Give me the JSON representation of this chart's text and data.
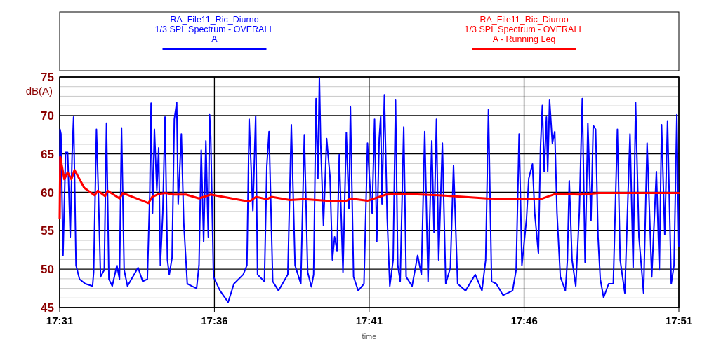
{
  "chart_data": {
    "type": "line",
    "xlabel": "time",
    "ylabel": "dB(A)",
    "xlim": [
      17.5167,
      17.85
    ],
    "xticks": [
      {
        "value": 17.5167,
        "label": "17:31"
      },
      {
        "value": 17.6,
        "label": "17:36"
      },
      {
        "value": 17.6833,
        "label": "17:41"
      },
      {
        "value": 17.7667,
        "label": "17:46"
      },
      {
        "value": 17.85,
        "label": "17:51"
      }
    ],
    "ylim": [
      45,
      75
    ],
    "yticks": [
      45,
      {
        "value": 46.25,
        "label": null
      },
      {
        "value": 47.5,
        "label": null
      },
      {
        "value": 48.75,
        "label": null
      },
      50,
      {
        "value": 51.25,
        "label": null
      },
      {
        "value": 52.5,
        "label": null
      },
      {
        "value": 53.75,
        "label": null
      },
      55,
      {
        "value": 56.25,
        "label": null
      },
      {
        "value": 57.5,
        "label": null
      },
      {
        "value": 58.75,
        "label": null
      },
      60,
      {
        "value": 61.25,
        "label": null
      },
      {
        "value": 62.5,
        "label": null
      },
      {
        "value": 63.75,
        "label": null
      },
      65,
      {
        "value": 66.25,
        "label": null
      },
      {
        "value": 67.5,
        "label": null
      },
      {
        "value": 68.75,
        "label": null
      },
      70,
      {
        "value": 71.25,
        "label": null
      },
      {
        "value": 72.5,
        "label": null
      },
      {
        "value": 73.75,
        "label": null
      },
      75
    ],
    "grid": true,
    "legend": "top",
    "marker": "none",
    "line_style": "solid",
    "series": [
      {
        "name": "RA_File11_Ric_Diurno\n1/3 SPL Spectrum - OVERALL\nA",
        "color": "#0000ff",
        "x": [
          17.5167,
          17.5169,
          17.5174,
          17.5185,
          17.5199,
          17.521,
          17.5224,
          17.5234,
          17.5242,
          17.5255,
          17.5274,
          17.5305,
          17.5344,
          17.535,
          17.5365,
          17.5375,
          17.5387,
          17.5407,
          17.5419,
          17.5432,
          17.545,
          17.5475,
          17.5489,
          17.55,
          17.5514,
          17.5532,
          17.5589,
          17.5614,
          17.5639,
          17.5652,
          17.5659,
          17.5667,
          17.5677,
          17.569,
          17.57,
          17.5709,
          17.5722,
          17.5734,
          17.5747,
          17.5757,
          17.5772,
          17.5784,
          17.5797,
          17.5805,
          17.5822,
          17.5835,
          17.5854,
          17.5879,
          17.5904,
          17.5917,
          17.5929,
          17.5942,
          17.5954,
          17.5967,
          17.5974,
          17.598,
          17.5995,
          17.603,
          17.6074,
          17.6105,
          17.6155,
          17.6175,
          17.6187,
          17.6207,
          17.6222,
          17.6232,
          17.6269,
          17.6282,
          17.6294,
          17.6314,
          17.6345,
          17.6395,
          17.6414,
          17.6434,
          17.6465,
          17.6484,
          17.6502,
          17.6522,
          17.6534,
          17.6547,
          17.6557,
          17.6565,
          17.6572,
          17.6587,
          17.6604,
          17.6622,
          17.6635,
          17.6647,
          17.666,
          17.6672,
          17.6692,
          17.671,
          17.6724,
          17.6732,
          17.6749,
          17.6774,
          17.6805,
          17.6824,
          17.6837,
          17.6849,
          17.6862,
          17.6874,
          17.6887,
          17.6895,
          17.6902,
          17.6915,
          17.693,
          17.6944,
          17.6962,
          17.6975,
          17.6987,
          17.7,
          17.7019,
          17.7032,
          17.7064,
          17.7094,
          17.7114,
          17.7132,
          17.715,
          17.717,
          17.7182,
          17.7195,
          17.7207,
          17.7227,
          17.7245,
          17.727,
          17.7287,
          17.7309,
          17.7352,
          17.7404,
          17.744,
          17.746,
          17.7475,
          17.7492,
          17.7517,
          17.7554,
          17.7605,
          17.7624,
          17.764,
          17.7655,
          17.768,
          17.7692,
          17.7712,
          17.7724,
          17.7744,
          17.7755,
          17.7765,
          17.7775,
          17.7787,
          17.7794,
          17.7804,
          17.7819,
          17.7832,
          17.7844,
          17.7862,
          17.7889,
          17.79,
          17.791,
          17.7925,
          17.7945,
          17.7964,
          17.798,
          17.7995,
          17.801,
          17.8027,
          17.8039,
          17.8052,
          17.8065,
          17.8077,
          17.8095,
          17.8122,
          17.8147,
          17.8169,
          17.8184,
          17.8209,
          17.8237,
          17.8254,
          17.8267,
          17.8285,
          17.831,
          17.8329,
          17.8354,
          17.8379,
          17.8395,
          17.8407,
          17.8424,
          17.8439,
          17.8459,
          17.8474,
          17.8489,
          17.85
        ],
        "values": [
          56.6,
          68.2,
          67.6,
          51.8,
          65.2,
          65.2,
          54.2,
          64.9,
          69.8,
          50.5,
          48.7,
          48.1,
          47.8,
          49.6,
          68.2,
          60.3,
          49.0,
          49.9,
          69.0,
          48.7,
          47.8,
          50.5,
          48.7,
          68.4,
          49.9,
          47.8,
          50.2,
          48.4,
          48.7,
          59.7,
          71.6,
          57.3,
          68.2,
          60.3,
          65.8,
          50.5,
          57.3,
          69.8,
          51.2,
          49.3,
          51.5,
          69.5,
          71.7,
          58.5,
          67.6,
          56.0,
          48.1,
          47.8,
          47.5,
          50.5,
          65.5,
          53.6,
          66.7,
          54.2,
          70.1,
          67.3,
          49.0,
          47.2,
          45.7,
          48.1,
          49.3,
          50.5,
          69.5,
          57.6,
          69.9,
          49.3,
          48.4,
          63.4,
          67.9,
          48.4,
          47.2,
          49.3,
          68.8,
          50.5,
          48.1,
          67.5,
          49.6,
          47.7,
          49.3,
          72.2,
          61.8,
          74.9,
          66.4,
          55.7,
          67.0,
          62.1,
          51.2,
          54.2,
          52.4,
          64.9,
          49.6,
          67.8,
          57.9,
          71.1,
          49.0,
          47.2,
          48.1,
          66.4,
          60.9,
          57.3,
          69.5,
          53.6,
          67.0,
          69.9,
          58.5,
          72.7,
          56.6,
          47.8,
          51.2,
          72.0,
          50.5,
          48.4,
          68.5,
          49.0,
          47.8,
          51.8,
          49.3,
          67.9,
          48.4,
          66.7,
          54.8,
          69.5,
          51.2,
          66.4,
          48.1,
          50.2,
          63.5,
          48.1,
          47.2,
          49.3,
          47.2,
          51.2,
          70.8,
          48.4,
          48.1,
          46.6,
          47.2,
          49.9,
          67.6,
          50.5,
          56.6,
          61.8,
          63.7,
          57.3,
          52.1,
          65.8,
          71.3,
          62.7,
          69.8,
          62.7,
          72.0,
          66.4,
          67.9,
          57.3,
          49.0,
          47.2,
          51.2,
          61.5,
          51.2,
          47.8,
          57.3,
          72.2,
          50.9,
          69.0,
          56.3,
          68.7,
          68.2,
          54.2,
          48.7,
          46.3,
          48.1,
          48.1,
          68.2,
          51.2,
          46.9,
          67.6,
          50.2,
          71.7,
          54.2,
          46.9,
          66.4,
          49.0,
          62.7,
          49.9,
          68.8,
          54.5,
          69.3,
          48.1,
          50.5,
          70.1,
          53.0
        ]
      },
      {
        "name": "RA_File11_Ric_Diurno\n1/3 SPL Spectrum - OVERALL\nA - Running Leq",
        "color": "#ff0000",
        "x": [
          17.5167,
          17.517,
          17.5192,
          17.521,
          17.523,
          17.5247,
          17.5299,
          17.5355,
          17.5372,
          17.5412,
          17.5425,
          17.5489,
          17.5507,
          17.5645,
          17.5665,
          17.5702,
          17.574,
          17.5779,
          17.5847,
          17.5917,
          17.598,
          17.6187,
          17.6225,
          17.6282,
          17.6307,
          17.6407,
          17.6484,
          17.6604,
          17.671,
          17.6735,
          17.6824,
          17.6924,
          17.7025,
          17.7227,
          17.7465,
          17.7655,
          17.7755,
          17.7837,
          17.797,
          17.807,
          17.85
        ],
        "values": [
          56.6,
          64.6,
          61.7,
          62.6,
          61.7,
          62.9,
          60.6,
          59.6,
          60.2,
          59.5,
          60.2,
          59.2,
          59.9,
          58.6,
          59.4,
          59.8,
          59.9,
          59.7,
          59.7,
          59.2,
          59.7,
          58.8,
          59.4,
          59.1,
          59.4,
          59.0,
          59.1,
          58.9,
          58.9,
          59.2,
          58.9,
          59.7,
          59.8,
          59.6,
          59.2,
          59.1,
          59.1,
          59.8,
          59.7,
          59.9,
          59.9
        ]
      }
    ]
  }
}
